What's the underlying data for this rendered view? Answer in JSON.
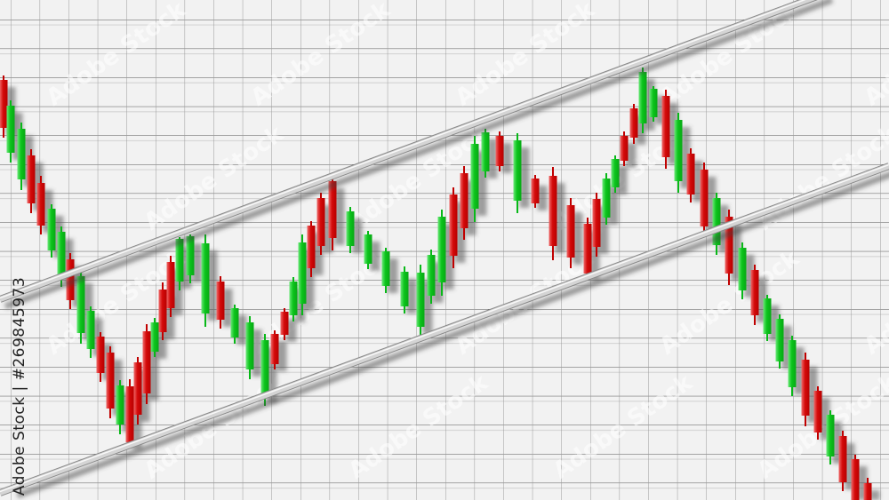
{
  "chart_data": {
    "type": "candlestick",
    "title": "",
    "xlabel": "",
    "ylabel": "",
    "axes_visible": false,
    "grid": true,
    "xlim": [
      0,
      100
    ],
    "ylim": [
      0,
      600
    ],
    "colors": {
      "red": "#d40a0a",
      "red_light": "#e86060",
      "green": "#0cc41c",
      "green_light": "#5ce070",
      "channel": "#c8c8c8",
      "grid_dark": "#4a4a4a",
      "grid_light": "#b8b8b8",
      "background": "#f2f2f2"
    },
    "candle_fields": [
      "t",
      "high",
      "body_top",
      "body_bottom",
      "low",
      "color"
    ],
    "candles": [
      [
        0.4,
        515,
        510,
        456,
        445,
        "r"
      ],
      [
        1.2,
        487,
        481,
        428,
        417,
        "g"
      ],
      [
        2.4,
        462,
        455,
        398,
        386,
        "g"
      ],
      [
        3.5,
        432,
        425,
        371,
        360,
        "r"
      ],
      [
        4.6,
        402,
        394,
        346,
        336,
        "r"
      ],
      [
        5.8,
        370,
        365,
        318,
        310,
        "g"
      ],
      [
        6.9,
        345,
        339,
        290,
        277,
        "g"
      ],
      [
        7.9,
        315,
        308,
        262,
        252,
        "r"
      ],
      [
        9.1,
        295,
        289,
        225,
        213,
        "g"
      ],
      [
        10.2,
        255,
        250,
        207,
        197,
        "g"
      ],
      [
        11.3,
        226,
        221,
        180,
        170,
        "r"
      ],
      [
        12.4,
        210,
        203,
        140,
        129,
        "r"
      ],
      [
        13.5,
        172,
        166,
        122,
        111,
        "g"
      ],
      [
        14.6,
        173,
        165,
        102,
        100,
        "r"
      ],
      [
        15.5,
        198,
        192,
        133,
        122,
        "r"
      ],
      [
        16.5,
        235,
        227,
        157,
        145,
        "r"
      ],
      [
        17.4,
        242,
        237,
        204,
        198,
        "g"
      ],
      [
        18.3,
        282,
        274,
        226,
        217,
        "r"
      ],
      [
        19.2,
        312,
        305,
        253,
        243,
        "r"
      ],
      [
        20.2,
        333,
        331,
        283,
        273,
        "g"
      ],
      [
        21.4,
        336,
        334,
        290,
        281,
        "g"
      ],
      [
        23.1,
        336,
        326,
        247,
        232,
        "g"
      ],
      [
        24.8,
        289,
        283,
        240,
        230,
        "r"
      ],
      [
        26.4,
        257,
        253,
        220,
        213,
        "g"
      ],
      [
        28.1,
        244,
        237,
        184,
        173,
        "g"
      ],
      [
        29.8,
        224,
        217,
        155,
        143,
        "g"
      ],
      [
        30.9,
        228,
        224,
        190,
        184,
        "r"
      ],
      [
        32.0,
        253,
        249,
        223,
        217,
        "r"
      ],
      [
        33.0,
        288,
        283,
        245,
        238,
        "g"
      ],
      [
        34.0,
        336,
        327,
        258,
        245,
        "g"
      ],
      [
        35.0,
        351,
        346,
        298,
        288,
        "r"
      ],
      [
        36.1,
        383,
        377,
        323,
        313,
        "r"
      ],
      [
        37.4,
        405,
        396,
        332,
        318,
        "r"
      ],
      [
        39.4,
        367,
        362,
        323,
        315,
        "g"
      ],
      [
        41.4,
        340,
        336,
        303,
        297,
        "g"
      ],
      [
        43.4,
        321,
        317,
        278,
        270,
        "g"
      ],
      [
        45.5,
        300,
        294,
        255,
        247,
        "g"
      ],
      [
        47.3,
        302,
        293,
        232,
        220,
        "g"
      ],
      [
        48.5,
        319,
        313,
        267,
        258,
        "g"
      ],
      [
        49.7,
        364,
        356,
        282,
        267,
        "g"
      ],
      [
        51.0,
        389,
        381,
        312,
        298,
        "r"
      ],
      [
        52.2,
        413,
        405,
        343,
        330,
        "r"
      ],
      [
        53.4,
        447,
        438,
        365,
        350,
        "g"
      ],
      [
        54.6,
        455,
        451,
        407,
        400,
        "g"
      ],
      [
        56.2,
        452,
        447,
        413,
        407,
        "r"
      ],
      [
        58.2,
        450,
        442,
        374,
        360,
        "g"
      ],
      [
        60.2,
        403,
        399,
        371,
        366,
        "r"
      ],
      [
        62.2,
        412,
        402,
        323,
        307,
        "r"
      ],
      [
        64.2,
        377,
        369,
        310,
        298,
        "r"
      ],
      [
        66.1,
        355,
        348,
        292,
        290,
        "r"
      ],
      [
        67.1,
        383,
        376,
        322,
        311,
        "r"
      ],
      [
        68.2,
        405,
        399,
        355,
        347,
        "g"
      ],
      [
        69.2,
        425,
        421,
        389,
        383,
        "g"
      ],
      [
        70.2,
        452,
        447,
        419,
        413,
        "r"
      ],
      [
        71.3,
        483,
        478,
        445,
        438,
        "r"
      ],
      [
        72.3,
        524,
        519,
        461,
        450,
        "g"
      ],
      [
        73.5,
        503,
        500,
        468,
        463,
        "g"
      ],
      [
        74.9,
        499,
        492,
        423,
        410,
        "r"
      ],
      [
        76.3,
        473,
        465,
        396,
        383,
        "g"
      ],
      [
        77.7,
        433,
        427,
        381,
        372,
        "r"
      ],
      [
        79.2,
        417,
        409,
        345,
        338,
        "r"
      ],
      [
        80.6,
        383,
        377,
        324,
        313,
        "g"
      ],
      [
        82.0,
        364,
        356,
        292,
        279,
        "r"
      ],
      [
        83.5,
        327,
        321,
        273,
        263,
        "g"
      ],
      [
        84.9,
        302,
        296,
        245,
        234,
        "r"
      ],
      [
        86.3,
        268,
        264,
        224,
        216,
        "g"
      ],
      [
        87.7,
        246,
        241,
        193,
        185,
        "g"
      ],
      [
        89.1,
        222,
        217,
        164,
        154,
        "g"
      ],
      [
        90.6,
        203,
        195,
        132,
        120,
        "r"
      ],
      [
        92.0,
        165,
        160,
        113,
        105,
        "r"
      ],
      [
        93.4,
        138,
        133,
        86,
        77,
        "g"
      ],
      [
        94.8,
        115,
        109,
        57,
        47,
        "r"
      ],
      [
        96.2,
        88,
        83,
        30,
        20,
        "r"
      ],
      [
        97.6,
        62,
        56,
        0,
        0,
        "r"
      ]
    ],
    "channel_lines": [
      {
        "name": "upper-channel",
        "start": [
          0,
          263
        ],
        "end": [
          93,
          608
        ]
      },
      {
        "name": "lower-channel",
        "start": [
          0,
          45
        ],
        "end": [
          100,
          413
        ]
      }
    ]
  },
  "watermark": {
    "text": "Adobe Stock"
  },
  "credit": "Adobe Stock | #269845973"
}
